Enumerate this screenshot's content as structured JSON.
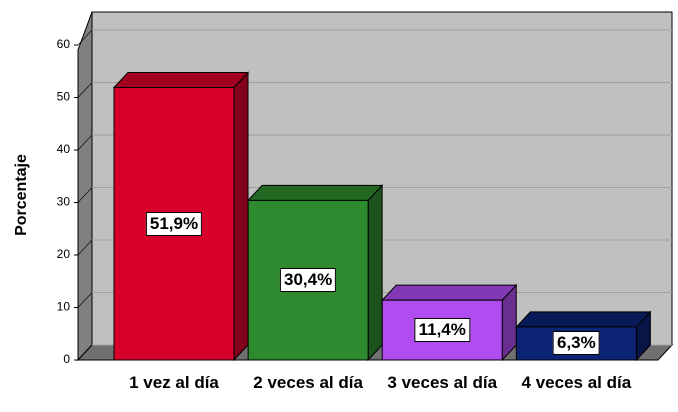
{
  "chart_data": {
    "type": "bar3d",
    "y_label": "Porcentaje",
    "categories": [
      "1 vez al día",
      "2 veces al día",
      "3 veces al día",
      "4 veces al día"
    ],
    "values": [
      51.9,
      30.4,
      11.4,
      6.3
    ],
    "value_labels": [
      "51,9%",
      "30,4%",
      "11,4%",
      "6,3%"
    ],
    "colors": [
      "#d8002b",
      "#2e8a2e",
      "#b04cf0",
      "#0b2475"
    ],
    "ylim": [
      0,
      60
    ],
    "yticks": [
      0,
      10,
      20,
      30,
      40,
      50,
      60
    ],
    "grid": true
  }
}
